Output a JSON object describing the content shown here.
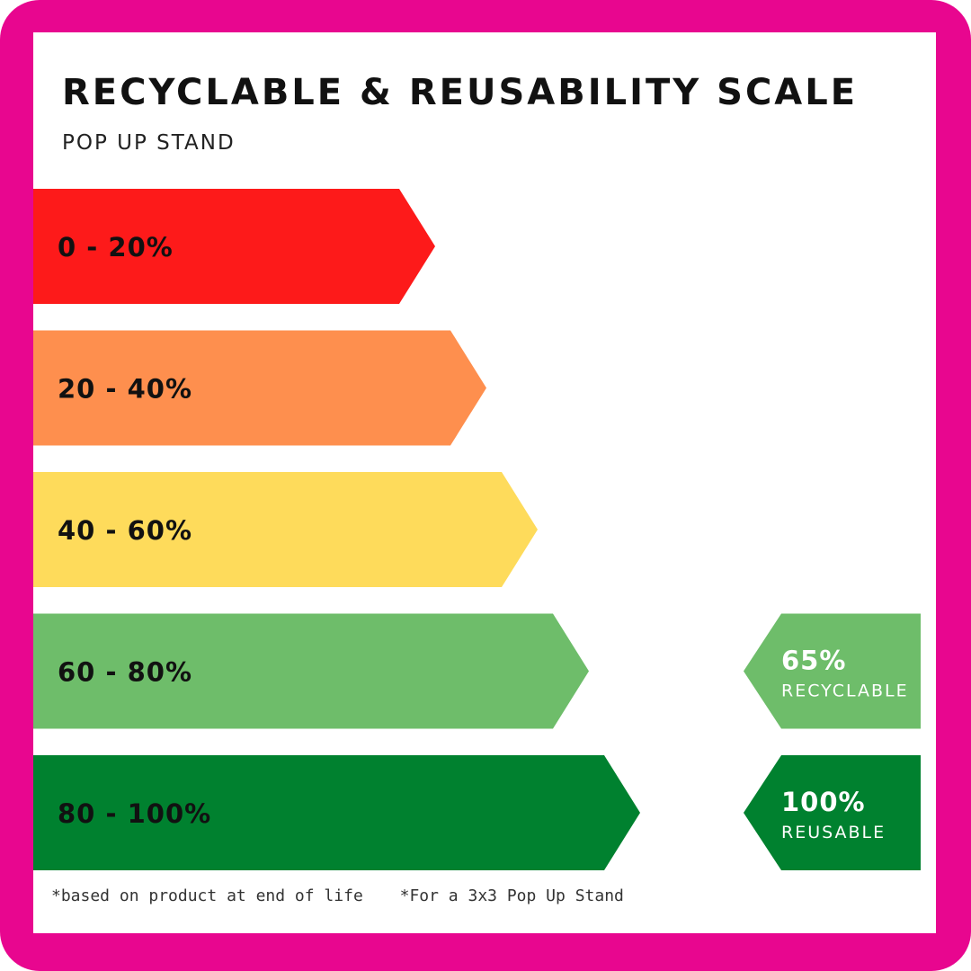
{
  "header": {
    "title": "RECYCLABLE & REUSABILITY SCALE",
    "subtitle": "POP UP STAND"
  },
  "chart_data": {
    "type": "bar",
    "title": "RECYCLABLE & REUSABILITY SCALE",
    "subtitle": "POP UP STAND",
    "categories": [
      "0 - 20%",
      "20 - 40%",
      "40 - 60%",
      "60 - 80%",
      "80 - 100%"
    ],
    "series": [
      {
        "values": [
          20,
          40,
          60,
          80,
          100
        ]
      }
    ],
    "colors": [
      "#fd1a1a",
      "#fe8f4e",
      "#fedb5b",
      "#6ebd6a",
      "#00812f"
    ],
    "badges": [
      {
        "value": "65%",
        "caption": "RECYCLABLE",
        "band": "60 - 80%",
        "color": "#6ebd6a"
      },
      {
        "value": "100%",
        "caption": "REUSABLE",
        "band": "80 - 100%",
        "color": "#00812f"
      }
    ]
  },
  "footnotes": {
    "note1": "*based on product at end of life",
    "note2": "*For a 3x3 Pop Up Stand"
  },
  "frame_color": "#e8068f"
}
